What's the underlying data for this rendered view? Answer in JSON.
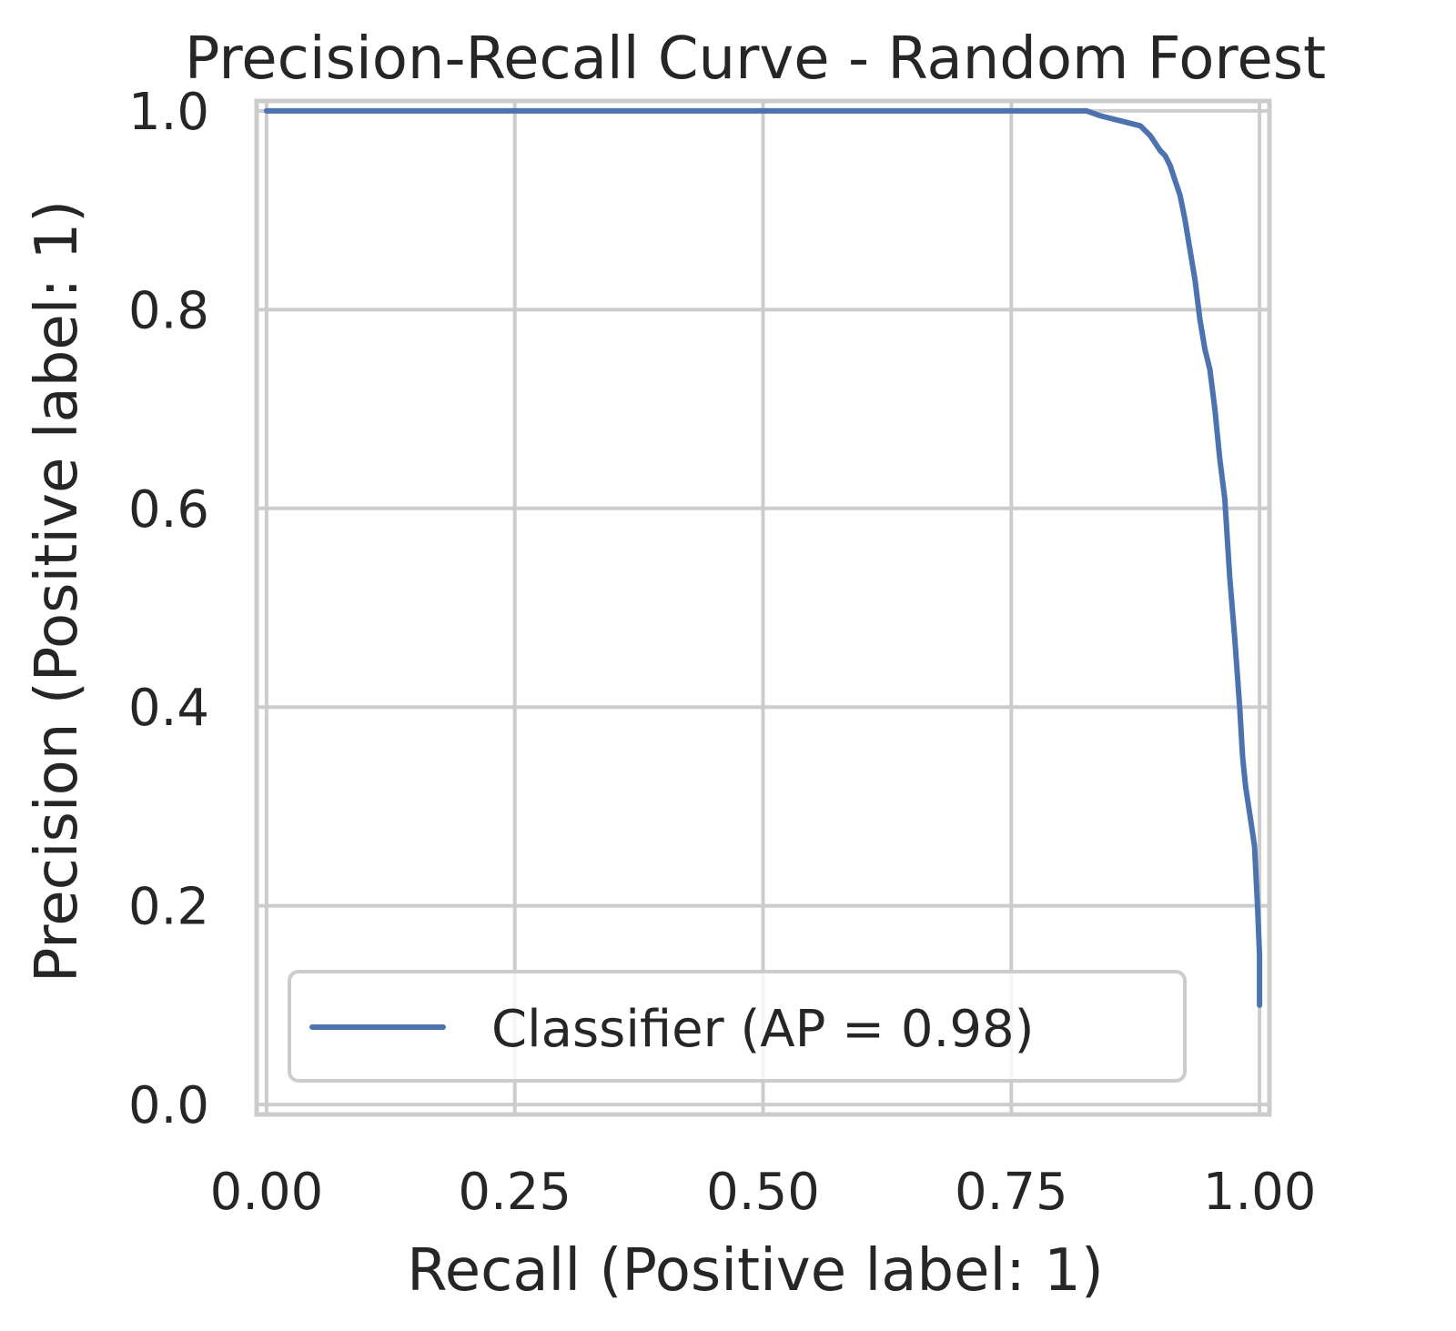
{
  "chart_data": {
    "type": "line",
    "title": "Precision-Recall Curve - Random Forest",
    "xlabel": "Recall (Positive label: 1)",
    "ylabel": "Precision (Positive label: 1)",
    "xlim": [
      -0.01,
      1.01
    ],
    "ylim": [
      -0.01,
      1.01
    ],
    "grid": true,
    "legend_placement": "lower-left",
    "x_ticks": [
      {
        "value": 0.0,
        "label": "0.00"
      },
      {
        "value": 0.25,
        "label": "0.25"
      },
      {
        "value": 0.5,
        "label": "0.50"
      },
      {
        "value": 0.75,
        "label": "0.75"
      },
      {
        "value": 1.0,
        "label": "1.00"
      }
    ],
    "y_ticks": [
      {
        "value": 0.0,
        "label": "0.0"
      },
      {
        "value": 0.2,
        "label": "0.2"
      },
      {
        "value": 0.4,
        "label": "0.4"
      },
      {
        "value": 0.6,
        "label": "0.6"
      },
      {
        "value": 0.8,
        "label": "0.8"
      },
      {
        "value": 1.0,
        "label": "1.0"
      }
    ],
    "series": [
      {
        "name": "Classifier (AP = 0.98)",
        "color": "#4c72b0",
        "x": [
          0.0,
          0.1,
          0.2,
          0.3,
          0.4,
          0.5,
          0.6,
          0.7,
          0.8,
          0.826,
          0.84,
          0.86,
          0.88,
          0.89,
          0.9,
          0.905,
          0.91,
          0.915,
          0.92,
          0.925,
          0.93,
          0.935,
          0.94,
          0.945,
          0.95,
          0.955,
          0.96,
          0.965,
          0.97,
          0.975,
          0.98,
          0.983,
          0.986,
          0.989,
          0.992,
          0.995,
          0.998,
          1.0,
          1.0
        ],
        "y": [
          1.0,
          1.0,
          1.0,
          1.0,
          1.0,
          1.0,
          1.0,
          1.0,
          1.0,
          1.0,
          0.995,
          0.99,
          0.985,
          0.975,
          0.96,
          0.955,
          0.945,
          0.93,
          0.915,
          0.89,
          0.86,
          0.83,
          0.79,
          0.76,
          0.74,
          0.7,
          0.65,
          0.61,
          0.53,
          0.47,
          0.4,
          0.35,
          0.32,
          0.3,
          0.28,
          0.26,
          0.2,
          0.15,
          0.1
        ]
      }
    ]
  }
}
